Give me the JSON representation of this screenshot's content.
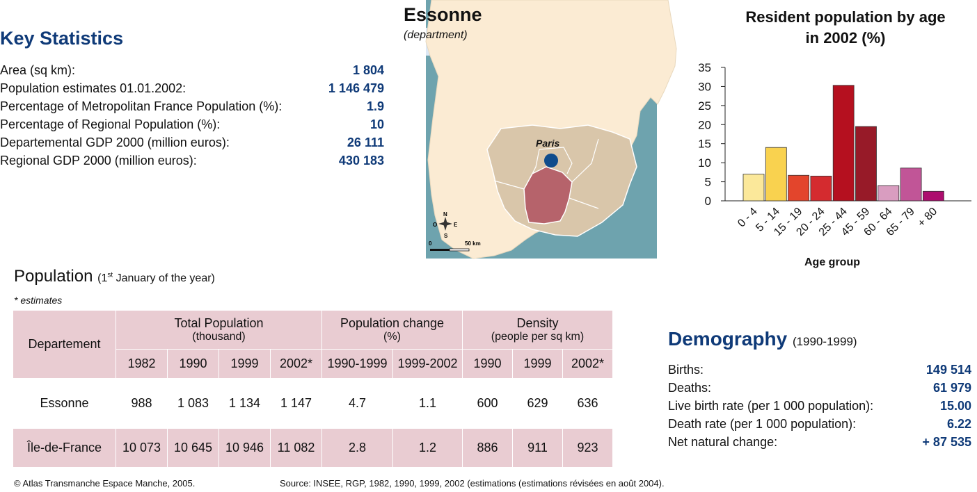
{
  "key_stats": {
    "title": "Key Statistics",
    "rows": [
      {
        "label": "Area (sq km):",
        "value": "1 804"
      },
      {
        "label": "Population estimates 01.01.2002:",
        "value": "1 146 479"
      },
      {
        "label": "Percentage of Metropolitan France Population (%):",
        "value": "1.9"
      },
      {
        "label": "Percentage of Regional Population (%):",
        "value": "10"
      },
      {
        "label": "Departemental GDP 2000 (million euros):",
        "value": "26 111"
      },
      {
        "label": "Regional GDP 2000 (million euros):",
        "value": "430 183"
      }
    ]
  },
  "map": {
    "title": "Essonne",
    "subtitle": "(department)",
    "city_label": "Paris",
    "scale_start": "0",
    "scale_end": "50 km",
    "compass": {
      "n": "N",
      "s": "S",
      "e": "E",
      "w": "O"
    },
    "colors": {
      "land": "#fbebd3",
      "region": "#d9c6aa",
      "highlight": "#b6636b",
      "sea": "#6ea3ae",
      "city": "#0f4c8c"
    }
  },
  "chart_data": {
    "type": "bar",
    "title": "Resident population by age in 2002 (%)",
    "xlabel": "Age group",
    "ylabel": "",
    "categories": [
      "0 - 4",
      "5 - 14",
      "15 - 19",
      "20 - 24",
      "25 - 44",
      "45 - 59",
      "60 - 64",
      "65 - 79",
      "+ 80"
    ],
    "values": [
      7,
      14,
      6.7,
      6.5,
      30.3,
      19.5,
      4,
      8.6,
      2.5
    ],
    "ylim": [
      0,
      35
    ],
    "yticks": [
      "0",
      "5",
      "10",
      "15",
      "20",
      "25",
      "30",
      "35"
    ],
    "colors": [
      "#fbe89a",
      "#f9d24f",
      "#e3452c",
      "#d42b2f",
      "#b5101f",
      "#971a28",
      "#d99dc0",
      "#c15597",
      "#ad0d6e"
    ],
    "grid": false
  },
  "population": {
    "title": "Population",
    "subtitle_pre": "(1",
    "subtitle_sup": "st",
    "subtitle_post": " January of the year)",
    "note": "* estimates",
    "headers": {
      "departement": "Departement",
      "total": "Total Population",
      "total_unit": "(thousand)",
      "change": "Population change",
      "change_unit": "(%)",
      "density": "Density",
      "density_unit": "(people per sq km)"
    },
    "years": [
      "1982",
      "1990",
      "1999",
      "2002*",
      "1990-1999",
      "1999-2002",
      "1990",
      "1999",
      "2002*"
    ],
    "rows": [
      {
        "name": "Essonne",
        "cells": [
          "988",
          "1 083",
          "1 134",
          "1 147",
          "4.7",
          "1.1",
          "600",
          "629",
          "636"
        ]
      },
      {
        "name": "Île-de-France",
        "cells": [
          "10 073",
          "10 645",
          "10 946",
          "11 082",
          "2.8",
          "1.2",
          "886",
          "911",
          "923"
        ]
      }
    ]
  },
  "demography": {
    "title": "Demography",
    "period": "(1990-1999)",
    "rows": [
      {
        "label": "Births:",
        "value": "149 514"
      },
      {
        "label": "Deaths:",
        "value": "61 979"
      },
      {
        "label": "Live birth rate (per 1 000 population):",
        "value": "15.00"
      },
      {
        "label": "Death rate (per 1 000 population):",
        "value": "6.22"
      },
      {
        "label": "Net natural change:",
        "value": "+ 87 535"
      }
    ]
  },
  "footer": {
    "copyright": "© Atlas Transmanche Espace Manche, 2005.",
    "source": "Source: INSEE, RGP, 1982, 1990, 1999, 2002 (estimations (estimations révisées en août 2004)."
  }
}
